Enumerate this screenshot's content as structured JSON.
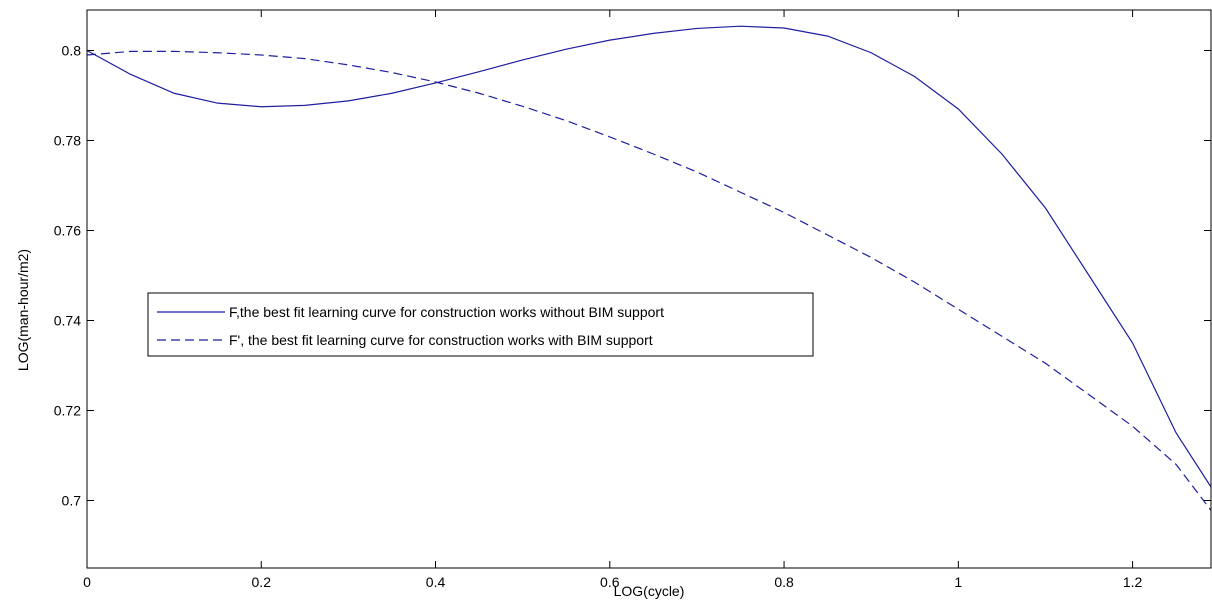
{
  "chart_data": {
    "type": "line",
    "title": "",
    "xlabel": "LOG(cycle)",
    "ylabel": "LOG(man-hour/m2)",
    "xlim": [
      0,
      1.29
    ],
    "ylim": [
      0.685,
      0.809
    ],
    "xticks": [
      0,
      0.2,
      0.4,
      0.6,
      0.8,
      1,
      1.2
    ],
    "xtick_labels": [
      "0",
      "0.2",
      "0.4",
      "0.6",
      "0.8",
      "1",
      "1.2"
    ],
    "yticks": [
      0.7,
      0.72,
      0.74,
      0.76,
      0.78,
      0.8
    ],
    "ytick_labels": [
      "0.7",
      "0.72",
      "0.74",
      "0.76",
      "0.78",
      "0.8"
    ],
    "grid": false,
    "legend_position": "middle-left",
    "line_color": "#1f1fa0",
    "series": [
      {
        "name": "F,the best fit learning curve for construction works without BIM support",
        "style": "solid",
        "x": [
          0,
          0.05,
          0.1,
          0.15,
          0.2,
          0.25,
          0.3,
          0.35,
          0.4,
          0.45,
          0.5,
          0.55,
          0.6,
          0.65,
          0.7,
          0.75,
          0.8,
          0.85,
          0.9,
          0.95,
          1.0,
          1.05,
          1.1,
          1.15,
          1.2,
          1.25,
          1.29
        ],
        "values": [
          0.8,
          0.7947,
          0.7905,
          0.7883,
          0.7875,
          0.7878,
          0.7888,
          0.7905,
          0.7928,
          0.7953,
          0.7979,
          0.8003,
          0.8023,
          0.8038,
          0.8049,
          0.8054,
          0.805,
          0.8032,
          0.7995,
          0.7942,
          0.787,
          0.777,
          0.765,
          0.75,
          0.735,
          0.715,
          0.703
        ]
      },
      {
        "name": "F', the best fit learning curve for construction works with BIM support",
        "style": "dashed",
        "x": [
          0,
          0.05,
          0.1,
          0.15,
          0.2,
          0.25,
          0.3,
          0.35,
          0.4,
          0.45,
          0.5,
          0.55,
          0.6,
          0.65,
          0.7,
          0.75,
          0.8,
          0.85,
          0.9,
          0.95,
          1.0,
          1.05,
          1.1,
          1.15,
          1.2,
          1.25,
          1.29
        ],
        "values": [
          0.799,
          0.7998,
          0.7998,
          0.7995,
          0.799,
          0.7982,
          0.7968,
          0.7951,
          0.793,
          0.7905,
          0.7876,
          0.7844,
          0.7808,
          0.777,
          0.773,
          0.7685,
          0.764,
          0.759,
          0.754,
          0.7485,
          0.7425,
          0.7365,
          0.7305,
          0.7235,
          0.7165,
          0.708,
          0.6978
        ]
      }
    ]
  }
}
